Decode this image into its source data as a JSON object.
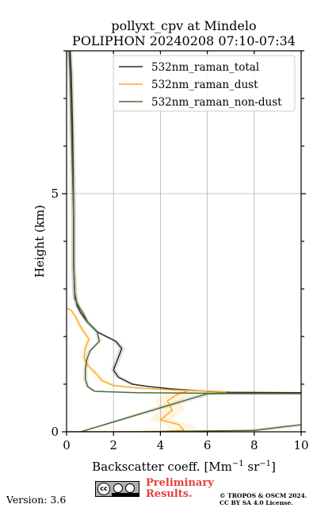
{
  "chart_data": {
    "type": "line",
    "title_line1": "pollyxt_cpv at Mindelo",
    "title_line2": "POLIPHON 20240208 07:10-07:34",
    "xlabel": "Backscatter coeff. [Mm",
    "xlabel_sup1": "−1",
    "xlabel_mid": " sr",
    "xlabel_sup2": "−1",
    "xlabel_end": "]",
    "ylabel": "Height (km)",
    "xlim": [
      0,
      10
    ],
    "ylim": [
      0,
      8
    ],
    "x_ticks": [
      0,
      2,
      4,
      6,
      8,
      10
    ],
    "y_ticks": [
      0,
      5
    ],
    "grid": true,
    "legend_position": "top-right",
    "series": [
      {
        "name": "532nm_raman_total",
        "color": "#2b2b2b",
        "points": [
          [
            10.0,
            0.82
          ],
          [
            7.0,
            0.83
          ],
          [
            6.0,
            0.85
          ],
          [
            4.5,
            0.9
          ],
          [
            3.5,
            0.95
          ],
          [
            2.8,
            1.0
          ],
          [
            2.2,
            1.15
          ],
          [
            2.0,
            1.3
          ],
          [
            2.2,
            1.55
          ],
          [
            2.35,
            1.75
          ],
          [
            2.1,
            1.9
          ],
          [
            1.3,
            2.1
          ],
          [
            0.9,
            2.3
          ],
          [
            0.6,
            2.5
          ],
          [
            0.45,
            2.65
          ],
          [
            0.35,
            2.9
          ],
          [
            0.3,
            3.5
          ],
          [
            0.3,
            4.5
          ],
          [
            0.28,
            5.5
          ],
          [
            0.25,
            6.5
          ],
          [
            0.2,
            7.5
          ],
          [
            0.15,
            8.0
          ]
        ]
      },
      {
        "name": "532nm_raman_dust",
        "color": "#ffaa22",
        "points": [
          [
            0.05,
            0.0
          ],
          [
            2.0,
            0.0
          ],
          [
            4.0,
            0.01
          ],
          [
            5.0,
            0.03
          ],
          [
            4.8,
            0.15
          ],
          [
            4.0,
            0.25
          ],
          [
            4.5,
            0.45
          ],
          [
            4.3,
            0.65
          ],
          [
            4.7,
            0.78
          ],
          [
            5.2,
            0.87
          ],
          [
            6.8,
            0.84
          ],
          [
            4.5,
            0.88
          ],
          [
            3.0,
            0.92
          ],
          [
            2.0,
            0.97
          ],
          [
            1.5,
            1.08
          ],
          [
            1.3,
            1.2
          ],
          [
            0.9,
            1.4
          ],
          [
            0.75,
            1.55
          ],
          [
            0.8,
            1.75
          ],
          [
            0.95,
            1.95
          ],
          [
            0.6,
            2.2
          ],
          [
            0.4,
            2.4
          ],
          [
            0.2,
            2.55
          ],
          [
            0.0,
            2.6
          ]
        ]
      },
      {
        "name": "532nm_raman_non-dust",
        "color": "#4d6b35",
        "points": [
          [
            10.0,
            0.15
          ],
          [
            8.0,
            0.03
          ],
          [
            3.0,
            0.0
          ],
          [
            0.0,
            0.0
          ],
          [
            0.6,
            0.0
          ],
          [
            6.0,
            0.8
          ],
          [
            10.0,
            0.8
          ],
          [
            6.0,
            0.81
          ],
          [
            3.0,
            0.82
          ],
          [
            1.2,
            0.85
          ],
          [
            0.9,
            0.95
          ],
          [
            0.8,
            1.1
          ],
          [
            0.8,
            1.3
          ],
          [
            0.85,
            1.5
          ],
          [
            1.0,
            1.7
          ],
          [
            1.4,
            1.9
          ],
          [
            1.3,
            2.1
          ],
          [
            0.9,
            2.3
          ],
          [
            0.7,
            2.5
          ],
          [
            0.5,
            2.65
          ],
          [
            0.35,
            2.8
          ],
          [
            0.3,
            3.5
          ],
          [
            0.3,
            4.5
          ],
          [
            0.25,
            5.5
          ],
          [
            0.2,
            6.5
          ],
          [
            0.15,
            7.5
          ],
          [
            0.1,
            8.0
          ]
        ]
      }
    ]
  },
  "footer": {
    "version": "Version: 3.6",
    "prelim_line1": "Preliminary",
    "prelim_line2": "Results.",
    "copyright_line1": "© TROPOS & OSCM 2024.",
    "copyright_line2": "CC BY SA 4.0 License.",
    "cc_badge_icon": "cc-by-sa-icon"
  }
}
